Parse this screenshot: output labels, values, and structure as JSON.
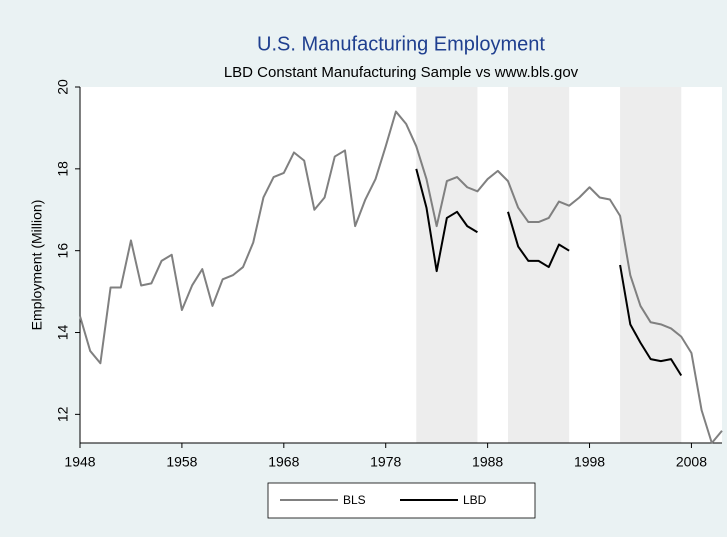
{
  "chart_data": {
    "type": "line",
    "title": "U.S. Manufacturing Employment",
    "subtitle": "LBD Constant Manufacturing Sample vs www.bls.gov",
    "y_label": "Employment (Million)",
    "x": [
      1948,
      1949,
      1950,
      1951,
      1952,
      1953,
      1954,
      1955,
      1956,
      1957,
      1958,
      1959,
      1960,
      1961,
      1962,
      1963,
      1964,
      1965,
      1966,
      1967,
      1968,
      1969,
      1970,
      1971,
      1972,
      1973,
      1974,
      1975,
      1976,
      1977,
      1978,
      1979,
      1980,
      1981,
      1982,
      1983,
      1984,
      1985,
      1986,
      1987,
      1988,
      1989,
      1990,
      1991,
      1992,
      1993,
      1994,
      1995,
      1996,
      1997,
      1998,
      1999,
      2000,
      2001,
      2002,
      2003,
      2004,
      2005,
      2006,
      2007,
      2008,
      2009,
      2010,
      2011
    ],
    "series": [
      {
        "name": "BLS",
        "color": "#808080",
        "values": [
          14.4,
          13.55,
          13.25,
          15.1,
          15.1,
          16.25,
          15.15,
          15.2,
          15.75,
          15.9,
          14.55,
          15.15,
          15.55,
          14.65,
          15.3,
          15.4,
          15.6,
          16.2,
          17.3,
          17.8,
          17.9,
          18.4,
          18.2,
          17.0,
          17.3,
          18.3,
          18.45,
          16.6,
          17.25,
          17.75,
          18.55,
          19.4,
          19.1,
          18.55,
          17.75,
          16.6,
          17.7,
          17.8,
          17.55,
          17.45,
          17.75,
          17.95,
          17.7,
          17.05,
          16.7,
          16.7,
          16.8,
          17.2,
          17.1,
          17.3,
          17.55,
          17.3,
          17.25,
          16.85,
          15.4,
          14.65,
          14.25,
          14.2,
          14.1,
          13.9,
          13.5,
          12.1,
          11.3,
          11.6
        ]
      },
      {
        "name": "LBD",
        "color": "#000000",
        "values": [
          null,
          null,
          null,
          null,
          null,
          null,
          null,
          null,
          null,
          null,
          null,
          null,
          null,
          null,
          null,
          null,
          null,
          null,
          null,
          null,
          null,
          null,
          null,
          null,
          null,
          null,
          null,
          null,
          null,
          null,
          null,
          null,
          null,
          18.0,
          17.05,
          15.5,
          16.8,
          16.95,
          16.6,
          16.45,
          null,
          null,
          16.95,
          16.1,
          15.75,
          15.75,
          15.6,
          16.15,
          16.0,
          null,
          null,
          null,
          null,
          15.65,
          14.2,
          13.75,
          13.35,
          13.3,
          13.35,
          12.95,
          null,
          null,
          null,
          null
        ]
      }
    ],
    "shaded_ranges": [
      [
        1981,
        1987
      ],
      [
        1990,
        1996
      ],
      [
        2001,
        2007
      ]
    ],
    "shade_color": "#ededed",
    "xlim": [
      1948,
      2011
    ],
    "ylim": [
      11.3,
      20
    ],
    "xticks": [
      1948,
      1958,
      1968,
      1978,
      1988,
      1998,
      2008
    ],
    "yticks": [
      12,
      14,
      16,
      18,
      20
    ],
    "grid": false
  }
}
